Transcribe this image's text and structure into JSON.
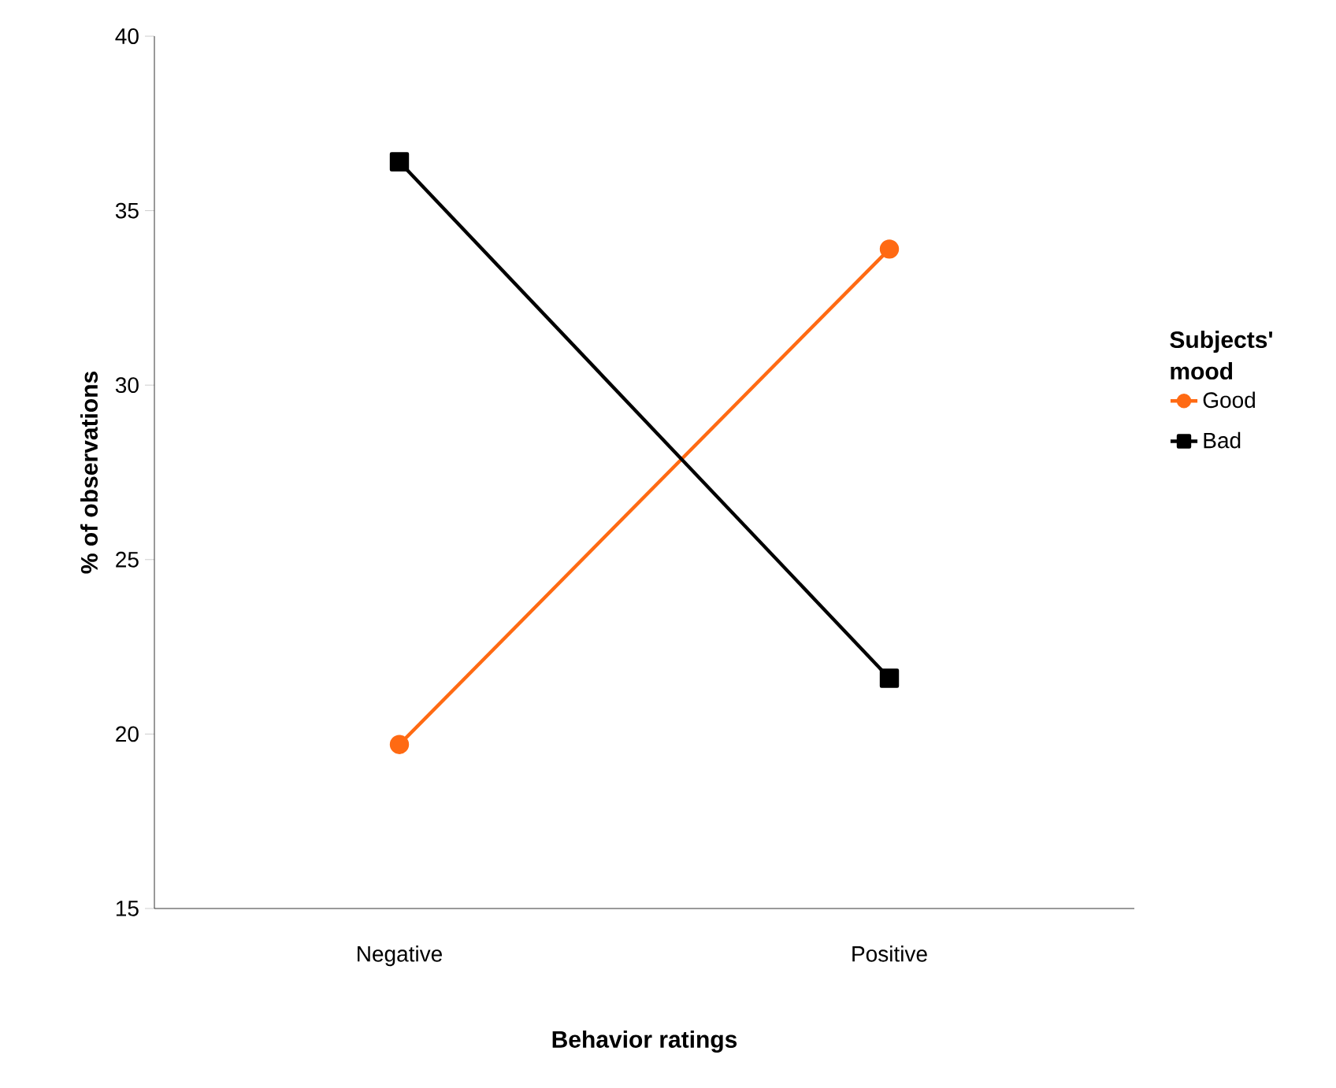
{
  "chart_data": {
    "type": "line",
    "xlabel": "Behavior ratings",
    "ylabel": "% of observations",
    "legend_title": "Subjects' mood",
    "categories": [
      "Negative",
      "Positive"
    ],
    "series": [
      {
        "name": "Good",
        "color": "#ff6a13",
        "values": [
          19.7,
          33.9
        ],
        "marker": "circle"
      },
      {
        "name": "Bad",
        "color": "#000000",
        "values": [
          36.4,
          21.6
        ],
        "marker": "square"
      }
    ],
    "ylim": [
      15,
      40
    ],
    "yticks": [
      15,
      20,
      25,
      30,
      35,
      40
    ],
    "grid": false,
    "legend": "right",
    "line_style": "solid"
  }
}
